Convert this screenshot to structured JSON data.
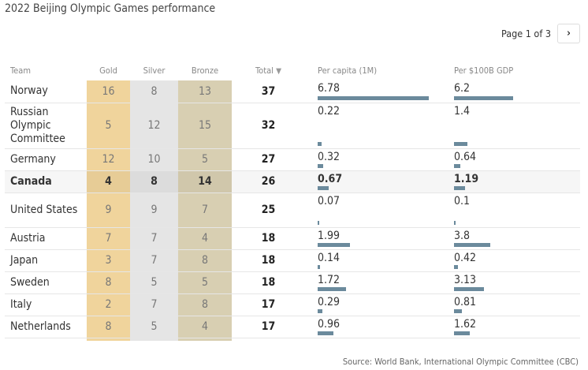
{
  "title": "2022 Beijing Olympic Games performance",
  "pager": {
    "label": "Page 1 of 3",
    "next_icon": "chevron-right-icon"
  },
  "columns": {
    "team": "Team",
    "gold": "Gold",
    "silver": "Silver",
    "bronze": "Bronze",
    "total": "Total",
    "per_capita": "Per capita (1M)",
    "per_gdp": "Per $100B GDP",
    "sort_icon": "triangle-down-icon"
  },
  "colors": {
    "gold": "#f0d49c",
    "silver": "#e5e5e5",
    "bronze": "#d8cfb2",
    "bar": "#6b8a9c"
  },
  "source": "Source: World Bank, International Olympic Committee (CBC)",
  "chart_data": {
    "type": "table",
    "sorted_by": "Total",
    "highlighted": "Canada",
    "rows": [
      {
        "team": "Norway",
        "gold": "16",
        "silver": "8",
        "bronze": "13",
        "total": "37",
        "per_capita": "6.78",
        "per_gdp": "6.2"
      },
      {
        "team": "Russian Olympic Committee",
        "gold": "5",
        "silver": "12",
        "bronze": "15",
        "total": "32",
        "per_capita": "0.22",
        "per_gdp": "1.4"
      },
      {
        "team": "Germany",
        "gold": "12",
        "silver": "10",
        "bronze": "5",
        "total": "27",
        "per_capita": "0.32",
        "per_gdp": "0.64"
      },
      {
        "team": "Canada",
        "gold": "4",
        "silver": "8",
        "bronze": "14",
        "total": "26",
        "per_capita": "0.67",
        "per_gdp": "1.19"
      },
      {
        "team": "United States",
        "gold": "9",
        "silver": "9",
        "bronze": "7",
        "total": "25",
        "per_capita": "0.07",
        "per_gdp": "0.1"
      },
      {
        "team": "Austria",
        "gold": "7",
        "silver": "7",
        "bronze": "4",
        "total": "18",
        "per_capita": "1.99",
        "per_gdp": "3.8"
      },
      {
        "team": "Japan",
        "gold": "3",
        "silver": "7",
        "bronze": "8",
        "total": "18",
        "per_capita": "0.14",
        "per_gdp": "0.42"
      },
      {
        "team": "Sweden",
        "gold": "8",
        "silver": "5",
        "bronze": "5",
        "total": "18",
        "per_capita": "1.72",
        "per_gdp": "3.13"
      },
      {
        "team": "Italy",
        "gold": "2",
        "silver": "7",
        "bronze": "8",
        "total": "17",
        "per_capita": "0.29",
        "per_gdp": "0.81"
      },
      {
        "team": "Netherlands",
        "gold": "8",
        "silver": "5",
        "bronze": "4",
        "total": "17",
        "per_capita": "0.96",
        "per_gdp": "1.62"
      }
    ]
  }
}
